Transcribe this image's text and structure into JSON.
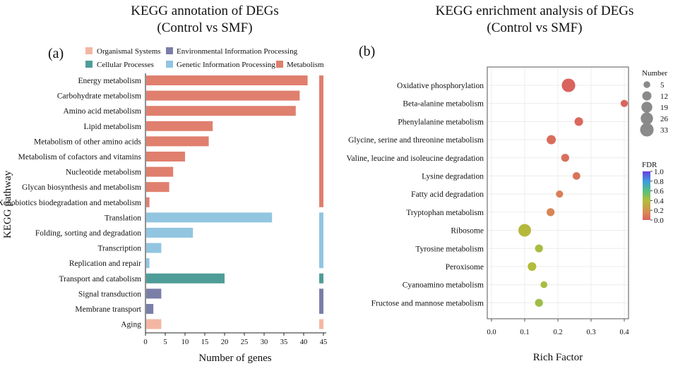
{
  "chart_data": [
    {
      "type": "bar",
      "orientation": "horizontal",
      "panel_label": "(a)",
      "title": "KEGG annotation of DEGs",
      "subtitle": "(Control vs SMF)",
      "xlabel": "Number of genes",
      "ylabel": "KEGG pathway",
      "xlim": [
        0,
        45
      ],
      "xticks": [
        "0",
        "5",
        "10",
        "15",
        "20",
        "25",
        "30",
        "35",
        "40",
        "45"
      ],
      "legend": {
        "placement": "top",
        "entries": [
          {
            "label": "Organismal Systems",
            "color": "#f4b6a3"
          },
          {
            "label": "Environmental Information Processing",
            "color": "#7a7fa8"
          },
          {
            "label": "Cellular Processes",
            "color": "#4f9d98"
          },
          {
            "label": "Genetic Information Processing",
            "color": "#92c5e0"
          },
          {
            "label": "Metabolism",
            "color": "#e07f6e"
          }
        ]
      },
      "groups": [
        {
          "name": "Metabolism",
          "color": "#e07f6e",
          "items": [
            {
              "category": "Energy metabolism",
              "value": 41
            },
            {
              "category": "Carbohydrate metabolism",
              "value": 39
            },
            {
              "category": "Amino acid metabolism",
              "value": 38
            },
            {
              "category": "Lipid metabolism",
              "value": 17
            },
            {
              "category": "Metabolism of other amino acids",
              "value": 16
            },
            {
              "category": "Metabolism of cofactors and vitamins",
              "value": 10
            },
            {
              "category": "Nucleotide metabolism",
              "value": 7
            },
            {
              "category": "Glycan biosynthesis and metabolism",
              "value": 6
            },
            {
              "category": "Xenobiotics biodegradation and metabolism",
              "value": 1
            }
          ]
        },
        {
          "name": "Genetic Information Processing",
          "color": "#92c5e0",
          "items": [
            {
              "category": "Translation",
              "value": 32
            },
            {
              "category": "Folding, sorting and degradation",
              "value": 12
            },
            {
              "category": "Transcription",
              "value": 4
            },
            {
              "category": "Replication and repair",
              "value": 1
            }
          ]
        },
        {
          "name": "Cellular Processes",
          "color": "#4f9d98",
          "items": [
            {
              "category": "Transport and catabolism",
              "value": 20
            }
          ]
        },
        {
          "name": "Environmental Information Processing",
          "color": "#7a7fa8",
          "items": [
            {
              "category": "Signal transduction",
              "value": 4
            },
            {
              "category": "Membrane transport",
              "value": 2
            }
          ]
        },
        {
          "name": "Organismal Systems",
          "color": "#f4b6a3",
          "items": [
            {
              "category": "Aging",
              "value": 4
            }
          ]
        }
      ]
    },
    {
      "type": "scatter",
      "panel_label": "(b)",
      "title": "KEGG enrichment analysis of DEGs",
      "subtitle": "(Control vs SMF)",
      "xlabel": "Rich Factor",
      "ylabel": "",
      "xlim": [
        0.0,
        0.4
      ],
      "xticks": [
        "0.0",
        "0.1",
        "0.2",
        "0.3",
        "0.4"
      ],
      "grid": true,
      "size_legend": {
        "title": "Number",
        "values": [
          "5",
          "12",
          "19",
          "26",
          "33"
        ]
      },
      "color_legend": {
        "title": "FDR",
        "ticks": [
          "1.0",
          "0.8",
          "0.6",
          "0.4",
          "0.2",
          "0.0"
        ],
        "range": [
          0.0,
          1.0
        ]
      },
      "points": [
        {
          "pathway": "Oxidative phosphorylation",
          "rich_factor": 0.232,
          "number": 33,
          "fdr": 0.01
        },
        {
          "pathway": "Beta-alanine metabolism",
          "rich_factor": 0.4,
          "number": 6,
          "fdr": 0.02
        },
        {
          "pathway": "Phenylalanine metabolism",
          "rich_factor": 0.263,
          "number": 10,
          "fdr": 0.03
        },
        {
          "pathway": "Glycine, serine and threonine metabolism",
          "rich_factor": 0.18,
          "number": 12,
          "fdr": 0.05
        },
        {
          "pathway": "Valine, leucine and isoleucine degradation",
          "rich_factor": 0.222,
          "number": 8,
          "fdr": 0.06
        },
        {
          "pathway": "Lysine degradation",
          "rich_factor": 0.256,
          "number": 7,
          "fdr": 0.07
        },
        {
          "pathway": "Fatty acid degradation",
          "rich_factor": 0.205,
          "number": 6,
          "fdr": 0.12
        },
        {
          "pathway": "Tryptophan metabolism",
          "rich_factor": 0.178,
          "number": 8,
          "fdr": 0.14
        },
        {
          "pathway": "Ribosome",
          "rich_factor": 0.1,
          "number": 28,
          "fdr": 0.38
        },
        {
          "pathway": "Tyrosine metabolism",
          "rich_factor": 0.143,
          "number": 8,
          "fdr": 0.42
        },
        {
          "pathway": "Peroxisome",
          "rich_factor": 0.122,
          "number": 10,
          "fdr": 0.4
        },
        {
          "pathway": "Cyanoamino metabolism",
          "rich_factor": 0.158,
          "number": 5,
          "fdr": 0.42
        },
        {
          "pathway": "Fructose and mannose metabolism",
          "rich_factor": 0.143,
          "number": 8,
          "fdr": 0.44
        }
      ]
    }
  ]
}
